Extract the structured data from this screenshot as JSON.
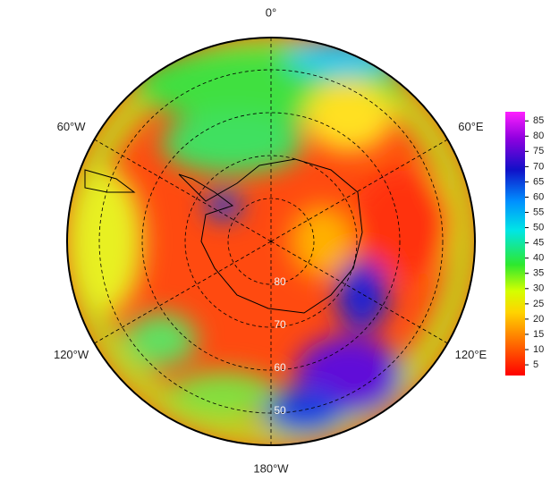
{
  "map": {
    "meridian_labels": [
      "0°",
      "60°E",
      "120°E",
      "180°W",
      "120°W",
      "60°W"
    ],
    "latitude_labels": [
      "80",
      "70",
      "60",
      "50"
    ],
    "colorbar": {
      "ticks": [
        5,
        10,
        15,
        20,
        25,
        30,
        35,
        40,
        45,
        50,
        55,
        60,
        65,
        70,
        75,
        80,
        85
      ],
      "lim": [
        1.5,
        88
      ]
    }
  }
}
